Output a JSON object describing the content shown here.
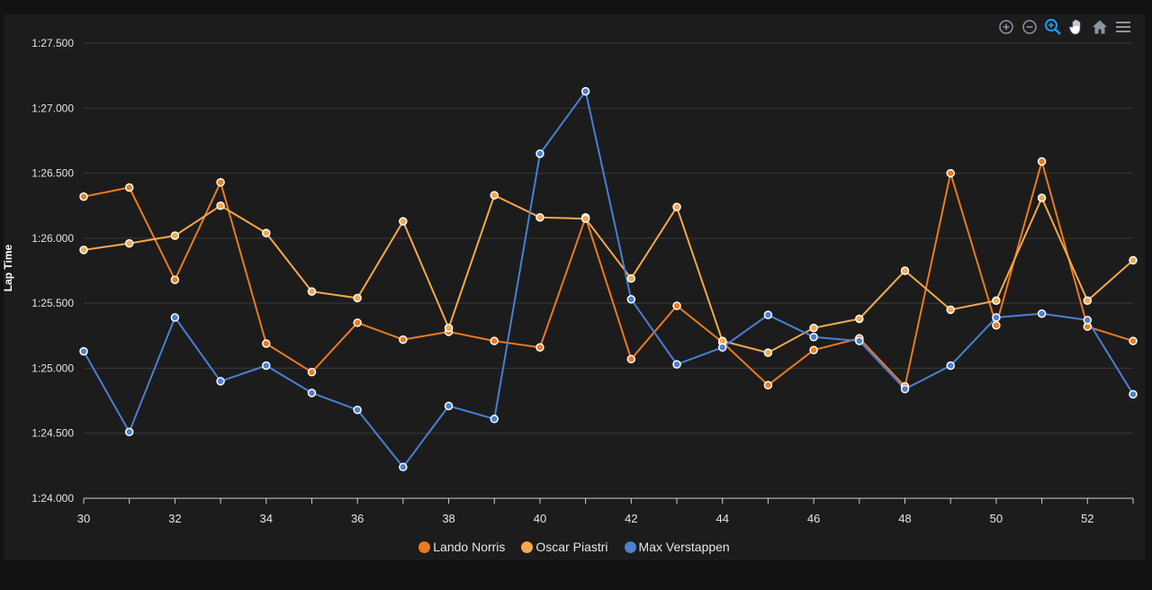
{
  "toolbar": {
    "icons": [
      "zoom-in-icon",
      "zoom-out-icon",
      "selection-zoom-icon",
      "pan-hand-icon",
      "home-icon",
      "menu-icon"
    ],
    "active": "selection-zoom-icon"
  },
  "chart_data": {
    "type": "line",
    "ylabel": "Lap Time",
    "xlabel": "",
    "x": [
      30,
      31,
      32,
      33,
      34,
      35,
      36,
      37,
      38,
      39,
      40,
      41,
      42,
      43,
      44,
      45,
      46,
      47,
      48,
      49,
      50,
      51,
      52,
      53
    ],
    "xlim": [
      30,
      53
    ],
    "ylim": [
      84.0,
      87.5
    ],
    "x_ticks": [
      "30",
      "32",
      "34",
      "36",
      "38",
      "40",
      "42",
      "44",
      "46",
      "48",
      "50",
      "52"
    ],
    "y_ticks": [
      "1:24.000",
      "1:24.500",
      "1:25.000",
      "1:25.500",
      "1:26.000",
      "1:26.500",
      "1:27.000",
      "1:27.500"
    ],
    "grid": true,
    "legend_position": "bottom-center",
    "series": [
      {
        "name": "Lando Norris",
        "color": "#ec7b1c",
        "values": [
          86.32,
          86.39,
          85.68,
          86.43,
          85.19,
          84.97,
          85.35,
          85.22,
          85.28,
          85.21,
          85.16,
          86.16,
          85.07,
          85.48,
          85.2,
          84.87,
          85.14,
          85.23,
          84.86,
          86.5,
          85.33,
          86.59,
          85.32,
          85.21
        ]
      },
      {
        "name": "Oscar Piastri",
        "color": "#f7a84a",
        "values": [
          85.91,
          85.96,
          86.02,
          86.25,
          86.04,
          85.59,
          85.54,
          86.13,
          85.31,
          86.33,
          86.16,
          86.15,
          85.69,
          86.24,
          85.21,
          85.12,
          85.31,
          85.38,
          85.75,
          85.45,
          85.52,
          86.31,
          85.52,
          85.83
        ]
      },
      {
        "name": "Max Verstappen",
        "color": "#4a7fd4",
        "values": [
          85.13,
          84.51,
          85.39,
          84.9,
          85.02,
          84.81,
          84.68,
          84.24,
          84.71,
          84.61,
          86.65,
          87.13,
          85.53,
          85.03,
          85.16,
          85.41,
          85.24,
          85.21,
          84.84,
          85.02,
          85.39,
          85.42,
          85.37,
          84.8
        ]
      }
    ]
  }
}
